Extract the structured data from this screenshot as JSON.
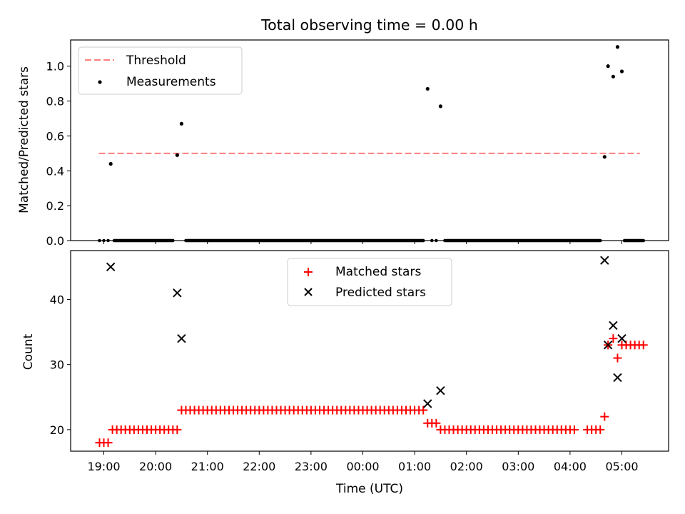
{
  "chart_data": [
    {
      "type": "scatter",
      "title": "Total observing time = 0.00 h",
      "xlabel": "",
      "ylabel": "Matched/Predicted stars",
      "ylim": [
        0,
        1.15
      ],
      "yticks": [
        "0.0",
        "0.2",
        "0.4",
        "0.6",
        "0.8",
        "1.0"
      ],
      "legend": {
        "placement": "top-left",
        "entries": [
          "Threshold",
          "Measurements"
        ]
      },
      "threshold": {
        "name": "Threshold",
        "value": 0.5,
        "x_start": "19:00",
        "x_end": "05:25",
        "color": "#ff7f7f"
      },
      "series": [
        {
          "name": "Measurements",
          "color": "#000000",
          "points": [
            [
              "19:08",
              0.44
            ],
            [
              "20:25",
              0.49
            ],
            [
              "20:30",
              0.67
            ],
            [
              "01:15",
              0.87
            ],
            [
              "01:30",
              0.77
            ],
            [
              "04:40",
              0.48
            ],
            [
              "04:44",
              1.0
            ],
            [
              "04:50",
              0.94
            ],
            [
              "04:55",
              1.11
            ],
            [
              "05:00",
              0.97
            ]
          ],
          "zero_runs": [
            [
              "18:55",
              "19:05",
              5
            ],
            [
              "19:12",
              "20:20",
              1
            ],
            [
              "20:35",
              "01:10",
              1
            ],
            [
              "01:20",
              "01:25",
              5
            ],
            [
              "01:35",
              "04:35",
              1
            ],
            [
              "05:03",
              "05:25",
              1
            ]
          ]
        }
      ]
    },
    {
      "type": "scatter",
      "title": "",
      "xlabel": "Time (UTC)",
      "ylabel": "Count",
      "ylim": [
        16.7,
        47.5
      ],
      "yticks": [
        "20",
        "30",
        "40"
      ],
      "x_tick_labels": [
        "19:00",
        "20:00",
        "21:00",
        "22:00",
        "23:00",
        "00:00",
        "01:00",
        "02:00",
        "03:00",
        "04:00",
        "05:00"
      ],
      "legend": {
        "placement": "top-center",
        "entries": [
          "Matched stars",
          "Predicted stars"
        ]
      },
      "series": [
        {
          "name": "Matched stars",
          "color": "#ff0000",
          "marker": "+",
          "runs": [
            [
              "18:55",
              "19:05",
              18,
              5
            ],
            [
              "19:10",
              "20:25",
              20,
              5
            ],
            [
              "20:30",
              "01:10",
              23,
              5
            ],
            [
              "01:15",
              "01:25",
              21,
              5
            ],
            [
              "01:30",
              "03:35",
              20,
              5
            ],
            [
              "03:40",
              "04:05",
              20,
              5
            ],
            [
              "04:20",
              "04:35",
              20,
              5
            ],
            [
              "05:00",
              "05:25",
              33,
              5
            ]
          ],
          "points": [
            [
              "04:40",
              22
            ],
            [
              "04:44",
              33
            ],
            [
              "04:50",
              34
            ],
            [
              "04:55",
              31
            ]
          ]
        },
        {
          "name": "Predicted stars",
          "color": "#000000",
          "marker": "x",
          "points": [
            [
              "19:08",
              45
            ],
            [
              "20:25",
              41
            ],
            [
              "20:30",
              34
            ],
            [
              "01:15",
              24
            ],
            [
              "01:30",
              26
            ],
            [
              "04:40",
              46
            ],
            [
              "04:44",
              33
            ],
            [
              "04:50",
              36
            ],
            [
              "04:55",
              28
            ],
            [
              "05:00",
              34
            ]
          ]
        }
      ]
    }
  ]
}
